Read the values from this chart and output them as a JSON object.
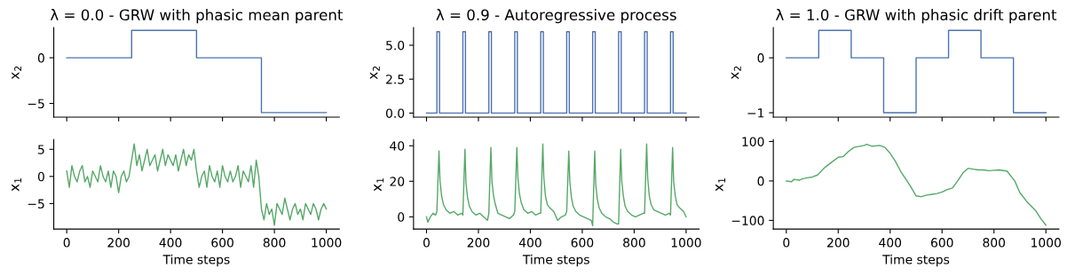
{
  "chart_data": [
    {
      "type": "step",
      "title": "λ = 0.0 - GRW with phasic mean parent",
      "ylabel": "x$_{2}$",
      "tick_labels": "y",
      "x": [
        0,
        250,
        500,
        750,
        1000
      ],
      "series": [
        {
          "color": "#4c72b0",
          "values": [
            0,
            3,
            0,
            -6,
            -6
          ]
        }
      ],
      "xlim": [
        -50,
        1050
      ],
      "xticks": [
        0,
        200,
        400,
        600,
        800,
        1000
      ],
      "ylim": [
        -6.5,
        3.3
      ],
      "yticks": [
        -5,
        0
      ]
    },
    {
      "type": "step",
      "title": "λ = 0.9 - Autoregressive process",
      "ylabel": "x$_{2}$",
      "tick_labels": "y",
      "x": [
        0,
        40,
        50,
        140,
        150,
        240,
        250,
        340,
        350,
        440,
        450,
        540,
        550,
        640,
        650,
        740,
        750,
        840,
        850,
        940,
        950,
        1000
      ],
      "series": [
        {
          "color": "#4c72b0",
          "values": [
            0,
            6,
            0,
            6,
            0,
            6,
            0,
            6,
            0,
            6,
            0,
            6,
            0,
            6,
            0,
            6,
            0,
            6,
            0,
            6,
            0,
            0
          ]
        }
      ],
      "xlim": [
        -50,
        1050
      ],
      "xticks": [
        0,
        200,
        400,
        600,
        800,
        1000
      ],
      "ylim": [
        -0.3,
        6.3
      ],
      "yticks": [
        {
          "value": 0,
          "label": "0.0"
        },
        {
          "value": 2.5,
          "label": "2.5"
        },
        {
          "value": 5,
          "label": "5.0"
        }
      ]
    },
    {
      "type": "step",
      "title": "λ = 1.0 - GRW with phasic drift parent",
      "ylabel": "x$_{2}$",
      "tick_labels": "y",
      "x": [
        0,
        125,
        250,
        375,
        500,
        625,
        750,
        875,
        1000
      ],
      "series": [
        {
          "color": "#4c72b0",
          "values": [
            0,
            0.5,
            0,
            -1,
            0,
            0.5,
            0,
            -1,
            -1
          ]
        }
      ],
      "xlim": [
        -50,
        1050
      ],
      "xticks": [
        0,
        200,
        400,
        600,
        800,
        1000
      ],
      "ylim": [
        -1.08,
        0.55
      ],
      "yticks": [
        -1,
        0
      ]
    },
    {
      "type": "line",
      "xlabel": "Time steps",
      "ylabel": "x$_{1}$",
      "x": [
        0,
        10,
        20,
        30,
        40,
        50,
        60,
        70,
        80,
        90,
        100,
        110,
        120,
        130,
        140,
        150,
        160,
        170,
        180,
        190,
        200,
        210,
        220,
        230,
        240,
        250,
        260,
        270,
        280,
        290,
        300,
        310,
        320,
        330,
        340,
        350,
        360,
        370,
        380,
        390,
        400,
        410,
        420,
        430,
        440,
        450,
        460,
        470,
        480,
        490,
        500,
        510,
        520,
        530,
        540,
        550,
        560,
        570,
        580,
        590,
        600,
        610,
        620,
        630,
        640,
        650,
        660,
        670,
        680,
        690,
        700,
        710,
        720,
        730,
        740,
        750,
        760,
        770,
        780,
        790,
        800,
        810,
        820,
        830,
        840,
        850,
        860,
        870,
        880,
        890,
        900,
        910,
        920,
        930,
        940,
        950,
        960,
        970,
        980,
        990,
        1000
      ],
      "series": [
        {
          "color": "#55a868",
          "values": [
            1,
            -2,
            2,
            0,
            -1,
            1,
            2,
            -1,
            0,
            -2,
            1,
            0,
            -1,
            2,
            0,
            -1,
            1,
            -2,
            1,
            0,
            -3,
            0,
            1,
            -1,
            0,
            3,
            6,
            2,
            4,
            1,
            3,
            5,
            2,
            3,
            4,
            1,
            3,
            5,
            2,
            4,
            3,
            2,
            4,
            1,
            3,
            5,
            2,
            4,
            3,
            5,
            1,
            -2,
            0,
            1,
            -2,
            2,
            0,
            -1,
            1,
            -2,
            2,
            0,
            -1,
            1,
            -1,
            0,
            2,
            -2,
            1,
            0,
            -1,
            2,
            -2,
            3,
            0,
            -6,
            -8,
            -5,
            -7,
            -6,
            -9,
            -5,
            -6,
            -7,
            -4,
            -6,
            -8,
            -6,
            -5,
            -7,
            -6,
            -8,
            -5,
            -6,
            -7,
            -5,
            -6,
            -8,
            -6,
            -5,
            -6
          ]
        }
      ],
      "xlim": [
        -50,
        1050
      ],
      "xticks": [
        0,
        200,
        400,
        600,
        800,
        1000
      ],
      "ylim": [
        -9.7,
        6.8
      ],
      "yticks": [
        -5,
        0,
        5
      ]
    },
    {
      "type": "line",
      "xlabel": "Time steps",
      "ylabel": "x$_{1}$",
      "x": [
        0,
        5,
        15,
        25,
        35,
        40,
        48,
        52,
        58,
        65,
        75,
        90,
        105,
        120,
        135,
        140,
        148,
        152,
        158,
        165,
        175,
        190,
        205,
        220,
        235,
        240,
        248,
        252,
        258,
        265,
        275,
        290,
        305,
        320,
        335,
        340,
        348,
        352,
        358,
        365,
        375,
        390,
        405,
        420,
        435,
        440,
        448,
        452,
        458,
        465,
        475,
        490,
        505,
        520,
        535,
        540,
        548,
        552,
        558,
        565,
        575,
        590,
        605,
        620,
        635,
        640,
        648,
        652,
        658,
        665,
        675,
        690,
        705,
        720,
        735,
        740,
        748,
        752,
        758,
        765,
        775,
        790,
        805,
        820,
        835,
        840,
        848,
        852,
        858,
        865,
        875,
        890,
        905,
        920,
        935,
        940,
        948,
        952,
        958,
        965,
        975,
        990,
        1000
      ],
      "series": [
        {
          "color": "#55a868",
          "values": [
            0,
            -3,
            0,
            2,
            1,
            3,
            37,
            20,
            12,
            7,
            4,
            2,
            3,
            1,
            2,
            1,
            38,
            19,
            11,
            6,
            3,
            1,
            2,
            0,
            -2,
            2,
            39,
            20,
            12,
            7,
            2,
            1,
            0,
            -1,
            1,
            3,
            39,
            22,
            13,
            8,
            4,
            2,
            3,
            1,
            2,
            2,
            41,
            22,
            12,
            7,
            5,
            3,
            -2,
            0,
            1,
            3,
            37,
            20,
            11,
            6,
            3,
            1,
            0,
            -1,
            -2,
            -5,
            37,
            18,
            10,
            5,
            2,
            0,
            -1,
            -3,
            -4,
            -4,
            38,
            20,
            12,
            6,
            3,
            1,
            0,
            1,
            2,
            2,
            41,
            22,
            12,
            7,
            4,
            3,
            2,
            1,
            2,
            1,
            39,
            20,
            12,
            7,
            5,
            3,
            0
          ]
        }
      ],
      "xlim": [
        -50,
        1050
      ],
      "xticks": [
        0,
        200,
        400,
        600,
        800,
        1000
      ],
      "ylim": [
        -6.9,
        43.5
      ],
      "yticks": [
        0,
        20,
        40
      ]
    },
    {
      "type": "line",
      "xlabel": "Time steps",
      "ylabel": "x$_{1}$",
      "x": [
        0,
        20,
        30,
        50,
        60,
        80,
        100,
        120,
        150,
        180,
        200,
        220,
        240,
        260,
        300,
        310,
        330,
        360,
        380,
        400,
        420,
        440,
        460,
        480,
        500,
        520,
        540,
        560,
        580,
        600,
        620,
        640,
        660,
        680,
        700,
        720,
        740,
        760,
        780,
        800,
        820,
        850,
        880,
        900,
        930,
        960,
        980,
        1000
      ],
      "series": [
        {
          "color": "#55a868",
          "values": [
            0,
            -2,
            4,
            2,
            5,
            8,
            10,
            15,
            35,
            50,
            60,
            62,
            75,
            85,
            90,
            93,
            88,
            90,
            85,
            70,
            50,
            25,
            5,
            -15,
            -38,
            -40,
            -36,
            -34,
            -32,
            -28,
            -22,
            -18,
            0,
            20,
            32,
            30,
            28,
            28,
            26,
            27,
            28,
            25,
            0,
            -30,
            -55,
            -75,
            -95,
            -112
          ]
        }
      ],
      "xlim": [
        -50,
        1050
      ],
      "xticks": [
        0,
        200,
        400,
        600,
        800,
        1000
      ],
      "ylim": [
        -122,
        105
      ],
      "yticks": [
        -100,
        0,
        100
      ]
    }
  ]
}
